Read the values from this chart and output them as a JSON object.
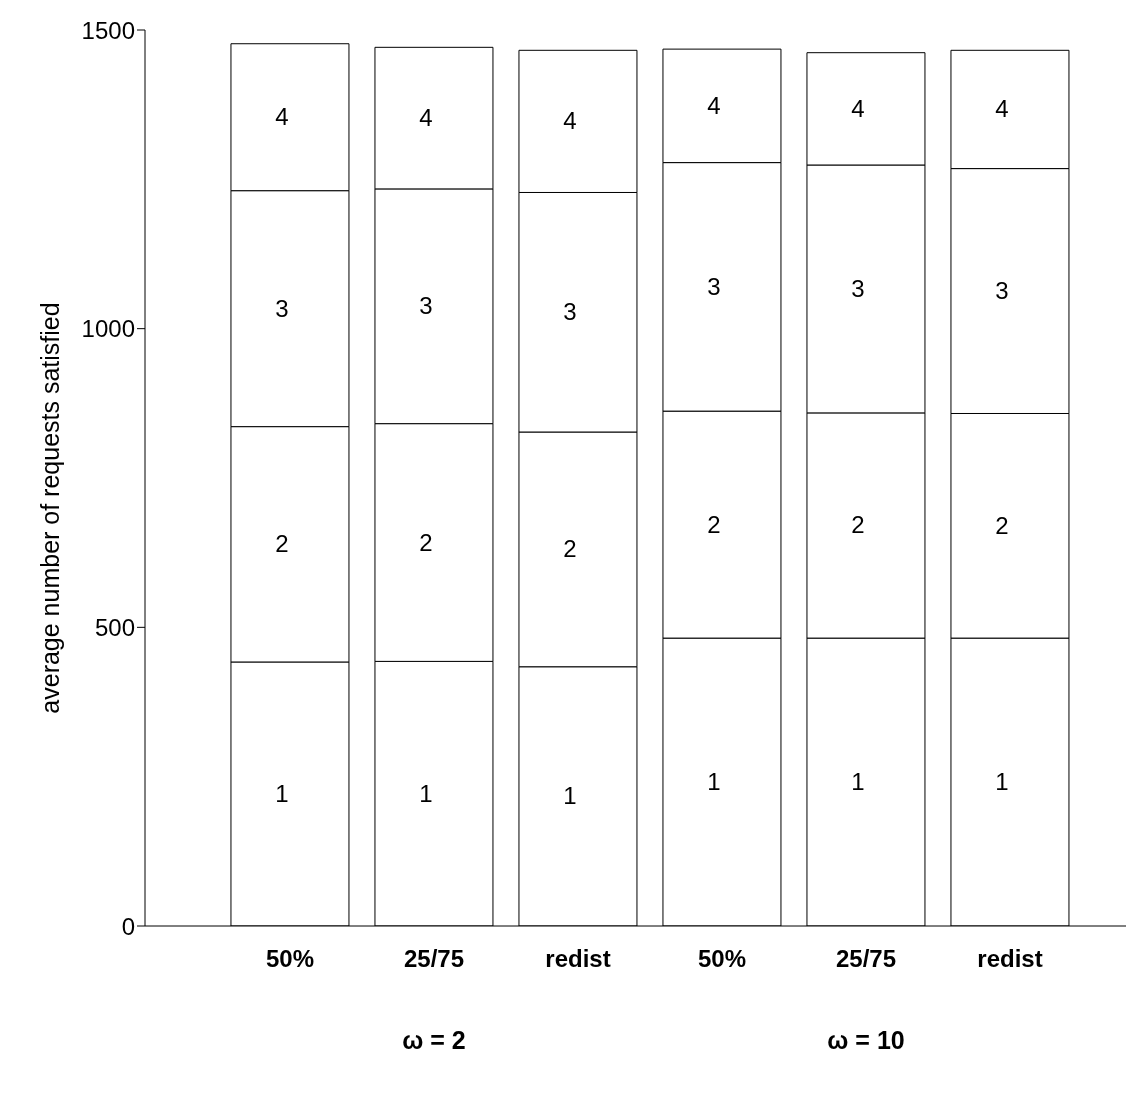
{
  "chart_data": {
    "type": "bar",
    "stacked": true,
    "ylabel": "average number of requests satisfied",
    "categories": [
      "50%",
      "25/75",
      "redist",
      "50%",
      "25/75",
      "redist"
    ],
    "series": [
      {
        "name": "1",
        "color": "#ffffff",
        "values": [
          442,
          443,
          434,
          482,
          482,
          482
        ]
      },
      {
        "name": "2",
        "color": "#ffffff",
        "values": [
          394,
          398,
          393,
          380,
          377,
          376
        ]
      },
      {
        "name": "3",
        "color": "#ffffff",
        "values": [
          395,
          393,
          401,
          416,
          415,
          410
        ]
      },
      {
        "name": "4",
        "color": "#ffffff",
        "values": [
          246,
          237,
          238,
          190,
          188,
          198
        ]
      }
    ],
    "ylim": [
      0,
      1500
    ],
    "yticks": [
      0,
      500,
      1000,
      1500
    ],
    "legend": false,
    "annotations": [
      "ω = 2",
      "ω = 10"
    ]
  }
}
